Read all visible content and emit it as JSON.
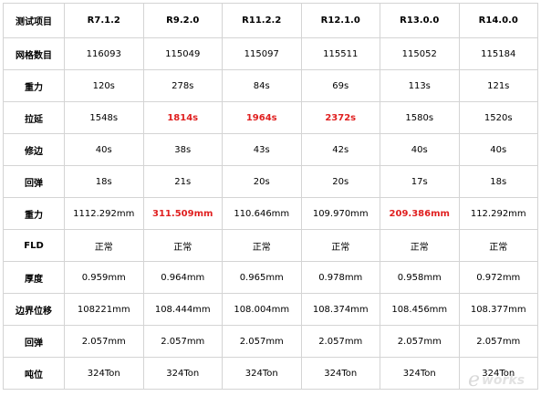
{
  "table": {
    "headers": [
      "测试项目",
      "R7.1.2",
      "R9.2.0",
      "R11.2.2",
      "R12.1.0",
      "R13.0.0",
      "R14.0.0"
    ],
    "rows": [
      {
        "label": "网格数目",
        "cells": [
          {
            "v": "116093"
          },
          {
            "v": "115049"
          },
          {
            "v": "115097"
          },
          {
            "v": "115511"
          },
          {
            "v": "115052"
          },
          {
            "v": "115184"
          }
        ]
      },
      {
        "label": "重力",
        "cells": [
          {
            "v": "120s"
          },
          {
            "v": "278s"
          },
          {
            "v": "84s"
          },
          {
            "v": "69s"
          },
          {
            "v": "113s"
          },
          {
            "v": "121s"
          }
        ]
      },
      {
        "label": "拉延",
        "cells": [
          {
            "v": "1548s"
          },
          {
            "v": "1814s",
            "hl": true
          },
          {
            "v": "1964s",
            "hl": true
          },
          {
            "v": "2372s",
            "hl": true
          },
          {
            "v": "1580s"
          },
          {
            "v": "1520s"
          }
        ]
      },
      {
        "label": "修边",
        "cells": [
          {
            "v": "40s"
          },
          {
            "v": "38s"
          },
          {
            "v": "43s"
          },
          {
            "v": "42s"
          },
          {
            "v": "40s"
          },
          {
            "v": "40s"
          }
        ]
      },
      {
        "label": "回弹",
        "cells": [
          {
            "v": "18s"
          },
          {
            "v": "21s"
          },
          {
            "v": "20s"
          },
          {
            "v": "20s"
          },
          {
            "v": "17s"
          },
          {
            "v": "18s"
          }
        ]
      },
      {
        "label": "重力",
        "cells": [
          {
            "v": "1112.292mm"
          },
          {
            "v": "311.509mm",
            "hl": true
          },
          {
            "v": "110.646mm"
          },
          {
            "v": "109.970mm"
          },
          {
            "v": "209.386mm",
            "hl": true
          },
          {
            "v": "112.292mm"
          }
        ]
      },
      {
        "label": "FLD",
        "cells": [
          {
            "v": "正常"
          },
          {
            "v": "正常"
          },
          {
            "v": "正常"
          },
          {
            "v": "正常"
          },
          {
            "v": "正常"
          },
          {
            "v": "正常"
          }
        ]
      },
      {
        "label": "厚度",
        "cells": [
          {
            "v": "0.959mm"
          },
          {
            "v": "0.964mm"
          },
          {
            "v": "0.965mm"
          },
          {
            "v": "0.978mm"
          },
          {
            "v": "0.958mm"
          },
          {
            "v": "0.972mm"
          }
        ]
      },
      {
        "label": "边界位移",
        "cells": [
          {
            "v": "108221mm"
          },
          {
            "v": "108.444mm"
          },
          {
            "v": "108.004mm"
          },
          {
            "v": "108.374mm"
          },
          {
            "v": "108.456mm"
          },
          {
            "v": "108.377mm"
          }
        ]
      },
      {
        "label": "回弹",
        "cells": [
          {
            "v": "2.057mm"
          },
          {
            "v": "2.057mm"
          },
          {
            "v": "2.057mm"
          },
          {
            "v": "2.057mm"
          },
          {
            "v": "2.057mm"
          },
          {
            "v": "2.057mm"
          }
        ]
      },
      {
        "label": "吨位",
        "cells": [
          {
            "v": "324Ton"
          },
          {
            "v": "324Ton"
          },
          {
            "v": "324Ton"
          },
          {
            "v": "324Ton"
          },
          {
            "v": "324Ton"
          },
          {
            "v": "324Ton"
          }
        ]
      }
    ],
    "highlight_color": "#e02020"
  },
  "watermark": {
    "logo": "e-works"
  }
}
